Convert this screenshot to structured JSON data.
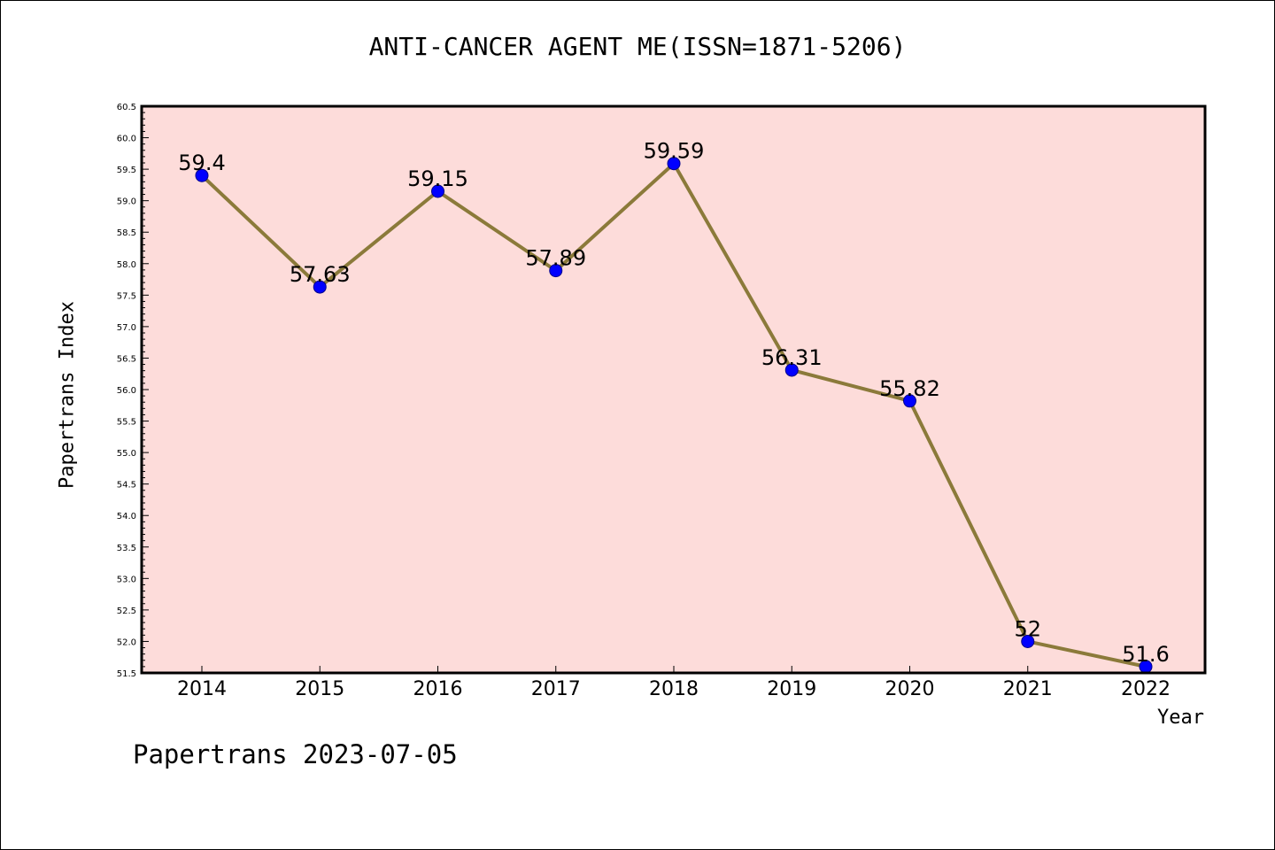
{
  "title": "ANTI-CANCER AGENT ME(ISSN=1871-5206)",
  "footer": "Papertrans 2023-07-05",
  "colors": {
    "plot_bg": "#fddcda",
    "line": "#8b7a3a",
    "marker": "#0000ff"
  },
  "chart_data": {
    "type": "line",
    "title": "ANTI-CANCER AGENT ME(ISSN=1871-5206)",
    "xlabel": "Year",
    "ylabel": "Papertrans Index",
    "categories": [
      "2014",
      "2015",
      "2016",
      "2017",
      "2018",
      "2019",
      "2020",
      "2021",
      "2022"
    ],
    "series": [
      {
        "values": [
          59.4,
          57.63,
          59.15,
          57.89,
          59.59,
          56.31,
          55.82,
          52,
          51.6
        ]
      }
    ],
    "data_labels": [
      "59.4",
      "57.63",
      "59.15",
      "57.89",
      "59.59",
      "56.31",
      "55.82",
      "52",
      "51.6"
    ],
    "ylim": [
      51.5,
      60.5
    ],
    "yticks": [
      "51.5",
      "52.0",
      "52.5",
      "53.0",
      "53.5",
      "54.0",
      "54.5",
      "55.0",
      "55.5",
      "56.0",
      "56.5",
      "57.0",
      "57.5",
      "58.0",
      "58.5",
      "59.0",
      "59.5",
      "60.0",
      "60.5"
    ],
    "grid": false
  }
}
